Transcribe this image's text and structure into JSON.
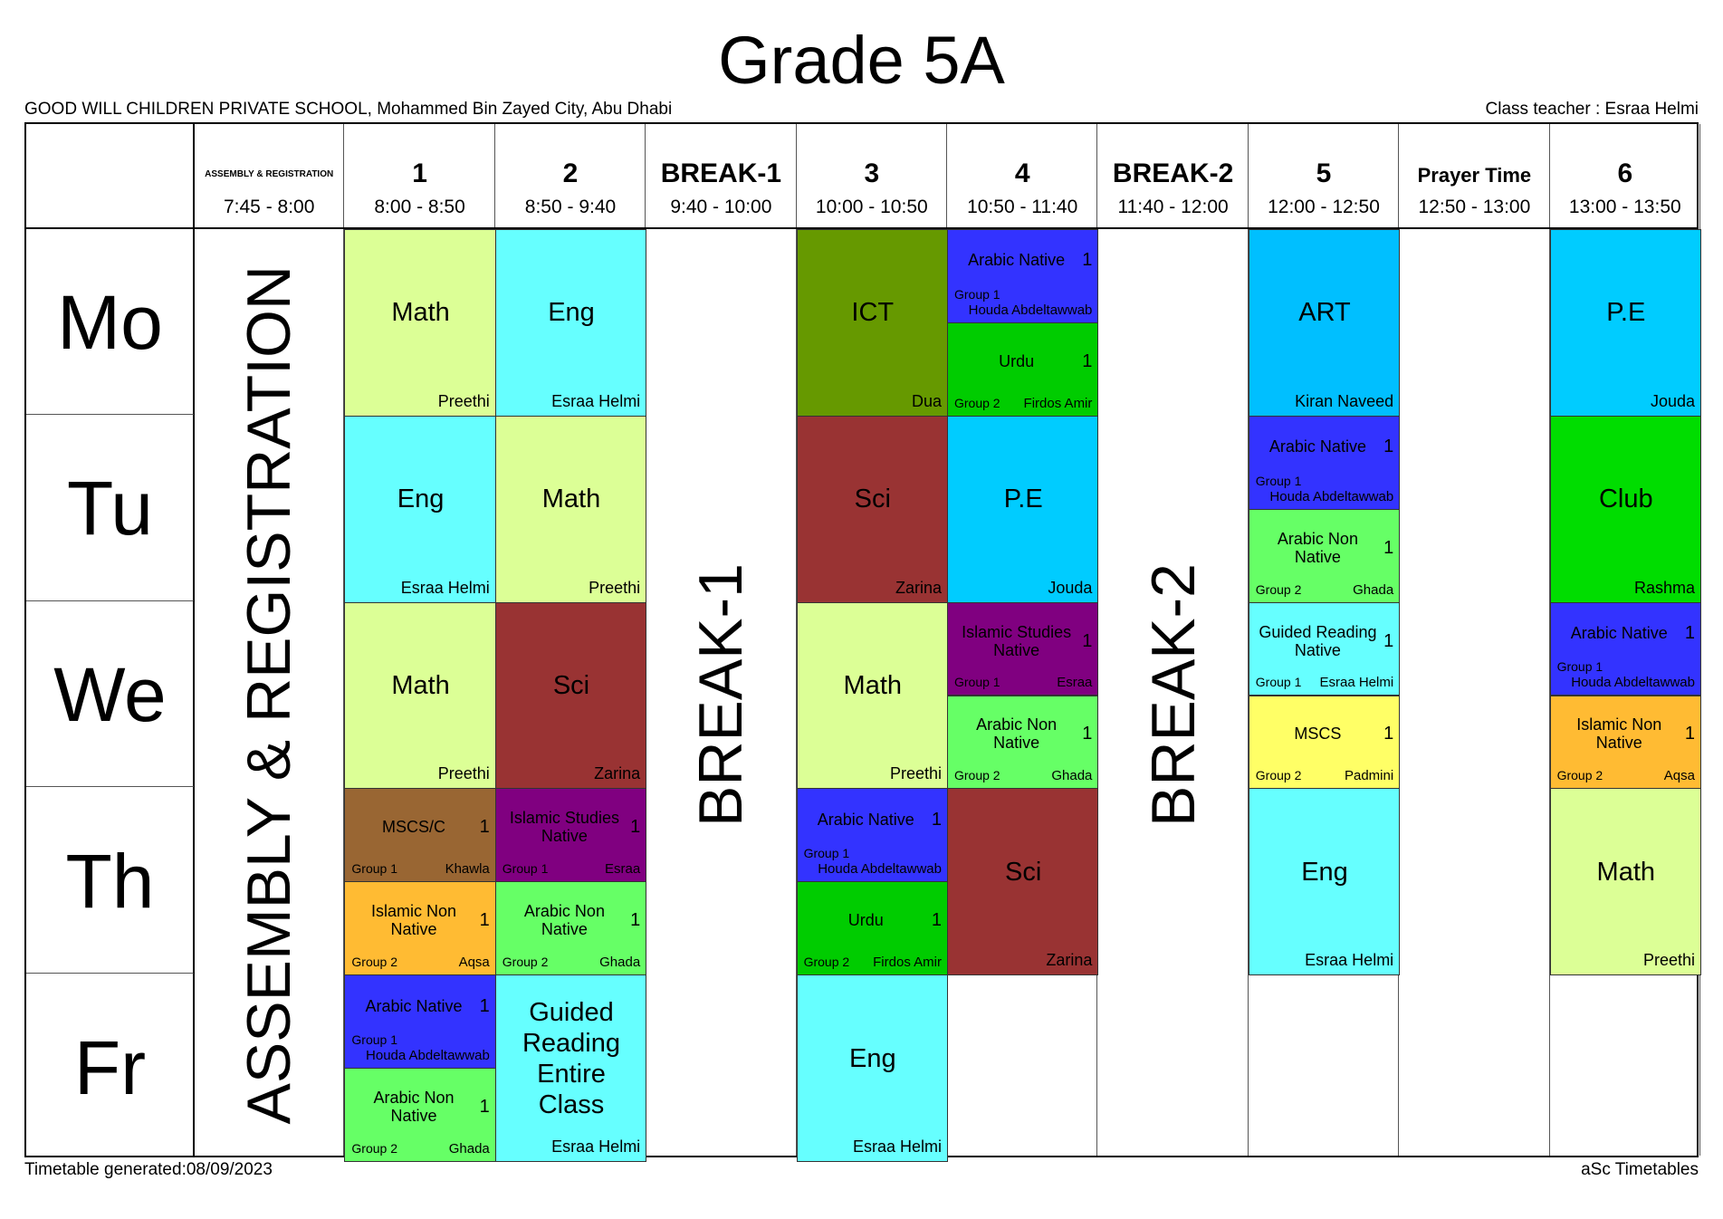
{
  "title": "Grade 5A",
  "school": "GOOD WILL CHILDREN PRIVATE SCHOOL, Mohammed Bin Zayed City, Abu Dhabi",
  "class_teacher": "Class teacher : Esraa Helmi",
  "footer": {
    "generated": "Timetable generated:08/09/2023",
    "brand": "aSc Timetables"
  },
  "periods": [
    {
      "label": "ASSEMBLY & REGISTRATION",
      "time": "7:45 - 8:00",
      "style": "tiny"
    },
    {
      "label": "1",
      "time": "8:00 - 8:50"
    },
    {
      "label": "2",
      "time": "8:50 - 9:40"
    },
    {
      "label": "BREAK-1",
      "time": "9:40 - 10:00"
    },
    {
      "label": "3",
      "time": "10:00 - 10:50"
    },
    {
      "label": "4",
      "time": "10:50 - 11:40"
    },
    {
      "label": "BREAK-2",
      "time": "11:40 - 12:00"
    },
    {
      "label": "5",
      "time": "12:00 - 12:50"
    },
    {
      "label": "Prayer Time",
      "time": "12:50 - 13:00",
      "style": "small"
    },
    {
      "label": "6",
      "time": "13:00 - 13:50"
    }
  ],
  "days": [
    "Mo",
    "Tu",
    "We",
    "Th",
    "Fr"
  ],
  "vertical_labels": [
    {
      "col": 0,
      "text": "ASSEMBLY & REGISTRATION"
    },
    {
      "col": 3,
      "text": "BREAK-1"
    },
    {
      "col": 6,
      "text": "BREAK-2"
    }
  ],
  "cells": [
    {
      "day": 0,
      "col": 1,
      "part": "full",
      "subject": "Math",
      "teacher": "Preethi",
      "color": "#dcff96"
    },
    {
      "day": 0,
      "col": 2,
      "part": "full",
      "subject": "Eng",
      "teacher": "Esraa Helmi",
      "color": "#66ffff"
    },
    {
      "day": 0,
      "col": 4,
      "part": "full",
      "subject": "ICT",
      "teacher": "Dua",
      "color": "#669900"
    },
    {
      "day": 0,
      "col": 5,
      "part": "top",
      "subject": "Arabic Native",
      "count": "1",
      "group": "Group 1",
      "teacher": "Houda Abdeltawwab",
      "color": "#3333ff"
    },
    {
      "day": 0,
      "col": 5,
      "part": "bottom",
      "subject": "Urdu",
      "count": "1",
      "group": "Group 2",
      "teacher": "Firdos Amir",
      "color": "#00cc00"
    },
    {
      "day": 0,
      "col": 7,
      "part": "full",
      "subject": "ART",
      "teacher": "Kiran Naveed",
      "color": "#00bfff"
    },
    {
      "day": 0,
      "col": 9,
      "part": "full",
      "subject": "P.E",
      "teacher": "Jouda",
      "color": "#00ccff"
    },
    {
      "day": 1,
      "col": 1,
      "part": "full",
      "subject": "Eng",
      "teacher": "Esraa Helmi",
      "color": "#66ffff"
    },
    {
      "day": 1,
      "col": 2,
      "part": "full",
      "subject": "Math",
      "teacher": "Preethi",
      "color": "#dcff96"
    },
    {
      "day": 1,
      "col": 4,
      "part": "full",
      "subject": "Sci",
      "teacher": "Zarina",
      "color": "#993333"
    },
    {
      "day": 1,
      "col": 5,
      "part": "full",
      "subject": "P.E",
      "teacher": "Jouda",
      "color": "#00ccff"
    },
    {
      "day": 1,
      "col": 7,
      "part": "top",
      "subject": "Arabic Native",
      "count": "1",
      "group": "Group 1",
      "teacher": "Houda Abdeltawwab",
      "color": "#3333ff"
    },
    {
      "day": 1,
      "col": 7,
      "part": "bottom",
      "subject": "Arabic Non Native",
      "count": "1",
      "group": "Group 2",
      "teacher": "Ghada",
      "color": "#66ff66"
    },
    {
      "day": 1,
      "col": 9,
      "part": "full",
      "subject": "Club",
      "teacher": "Rashma",
      "color": "#00dd00"
    },
    {
      "day": 2,
      "col": 1,
      "part": "full",
      "subject": "Math",
      "teacher": "Preethi",
      "color": "#dcff96"
    },
    {
      "day": 2,
      "col": 2,
      "part": "full",
      "subject": "Sci",
      "teacher": "Zarina",
      "color": "#993333"
    },
    {
      "day": 2,
      "col": 4,
      "part": "full",
      "subject": "Math",
      "teacher": "Preethi",
      "color": "#dcff96"
    },
    {
      "day": 2,
      "col": 5,
      "part": "top",
      "subject": "Islamic Studies Native",
      "count": "1",
      "group": "Group 1",
      "teacher": "Esraa",
      "color": "#800080"
    },
    {
      "day": 2,
      "col": 5,
      "part": "bottom",
      "subject": "Arabic Non Native",
      "count": "1",
      "group": "Group 2",
      "teacher": "Ghada",
      "color": "#66ff66"
    },
    {
      "day": 2,
      "col": 7,
      "part": "top",
      "subject": "Guided Reading Native",
      "count": "1",
      "group": "Group 1",
      "teacher": "Esraa Helmi",
      "color": "#66ffff"
    },
    {
      "day": 2,
      "col": 7,
      "part": "bottom",
      "subject": "MSCS",
      "count": "1",
      "group": "Group 2",
      "teacher": "Padmini",
      "color": "#ffff66"
    },
    {
      "day": 2,
      "col": 9,
      "part": "top",
      "subject": "Arabic Native",
      "count": "1",
      "group": "Group 1",
      "teacher": "Houda Abdeltawwab",
      "color": "#3333ff"
    },
    {
      "day": 2,
      "col": 9,
      "part": "bottom",
      "subject": "Islamic Non Native",
      "count": "1",
      "group": "Group 2",
      "teacher": "Aqsa",
      "color": "#ffbb33"
    },
    {
      "day": 3,
      "col": 1,
      "part": "top",
      "subject": "MSCS/C",
      "count": "1",
      "group": "Group 1",
      "teacher": "Khawla",
      "color": "#996633"
    },
    {
      "day": 3,
      "col": 1,
      "part": "bottom",
      "subject": "Islamic Non Native",
      "count": "1",
      "group": "Group 2",
      "teacher": "Aqsa",
      "color": "#ffbb33"
    },
    {
      "day": 3,
      "col": 2,
      "part": "top",
      "subject": "Islamic Studies Native",
      "count": "1",
      "group": "Group 1",
      "teacher": "Esraa",
      "color": "#800080"
    },
    {
      "day": 3,
      "col": 2,
      "part": "bottom",
      "subject": "Arabic Non Native",
      "count": "1",
      "group": "Group 2",
      "teacher": "Ghada",
      "color": "#66ff66"
    },
    {
      "day": 3,
      "col": 4,
      "part": "top",
      "subject": "Arabic Native",
      "count": "1",
      "group": "Group 1",
      "teacher": "Houda Abdeltawwab",
      "color": "#3333ff"
    },
    {
      "day": 3,
      "col": 4,
      "part": "bottom",
      "subject": "Urdu",
      "count": "1",
      "group": "Group 2",
      "teacher": "Firdos Amir",
      "color": "#00cc00"
    },
    {
      "day": 3,
      "col": 5,
      "part": "full",
      "subject": "Sci",
      "teacher": "Zarina",
      "color": "#993333"
    },
    {
      "day": 3,
      "col": 7,
      "part": "full",
      "subject": "Eng",
      "teacher": "Esraa Helmi",
      "color": "#66ffff"
    },
    {
      "day": 3,
      "col": 9,
      "part": "full",
      "subject": "Math",
      "teacher": "Preethi",
      "color": "#dcff96"
    },
    {
      "day": 4,
      "col": 1,
      "part": "top",
      "subject": "Arabic Native",
      "count": "1",
      "group": "Group 1",
      "teacher": "Houda Abdeltawwab",
      "color": "#3333ff"
    },
    {
      "day": 4,
      "col": 1,
      "part": "bottom",
      "subject": "Arabic Non Native",
      "count": "1",
      "group": "Group 2",
      "teacher": "Ghada",
      "color": "#66ff66"
    },
    {
      "day": 4,
      "col": 2,
      "part": "full",
      "subject": "Guided Reading Entire Class",
      "teacher": "Esraa Helmi",
      "color": "#66ffff"
    },
    {
      "day": 4,
      "col": 4,
      "part": "full",
      "subject": "Eng",
      "teacher": "Esraa Helmi",
      "color": "#66ffff"
    }
  ]
}
